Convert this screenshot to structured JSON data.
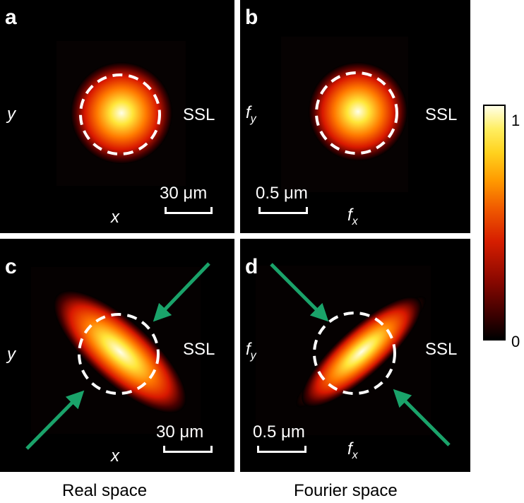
{
  "panels": {
    "a": {
      "label": "a",
      "x_axis": "x",
      "y_axis": "y",
      "marker": "SSL",
      "scale": "30 μm"
    },
    "b": {
      "label": "b",
      "x_axis": "f",
      "x_sub": "x",
      "y_axis": "f",
      "y_sub": "y",
      "marker": "SSL",
      "scale": "0.5 μm"
    },
    "c": {
      "label": "c",
      "x_axis": "x",
      "y_axis": "y",
      "marker": "SSL",
      "scale": "30 μm"
    },
    "d": {
      "label": "d",
      "x_axis": "f",
      "x_sub": "x",
      "y_axis": "f",
      "y_sub": "y",
      "marker": "SSL",
      "scale": "0.5 μm"
    }
  },
  "captions": {
    "left": "Real space",
    "right": "Fourier space"
  },
  "colorbar": {
    "max_label": "1",
    "min_label": "0",
    "colormap": "hot"
  },
  "colors": {
    "arrow": "#1aa36a",
    "circle": "#ffffff",
    "background": "#000000"
  }
}
